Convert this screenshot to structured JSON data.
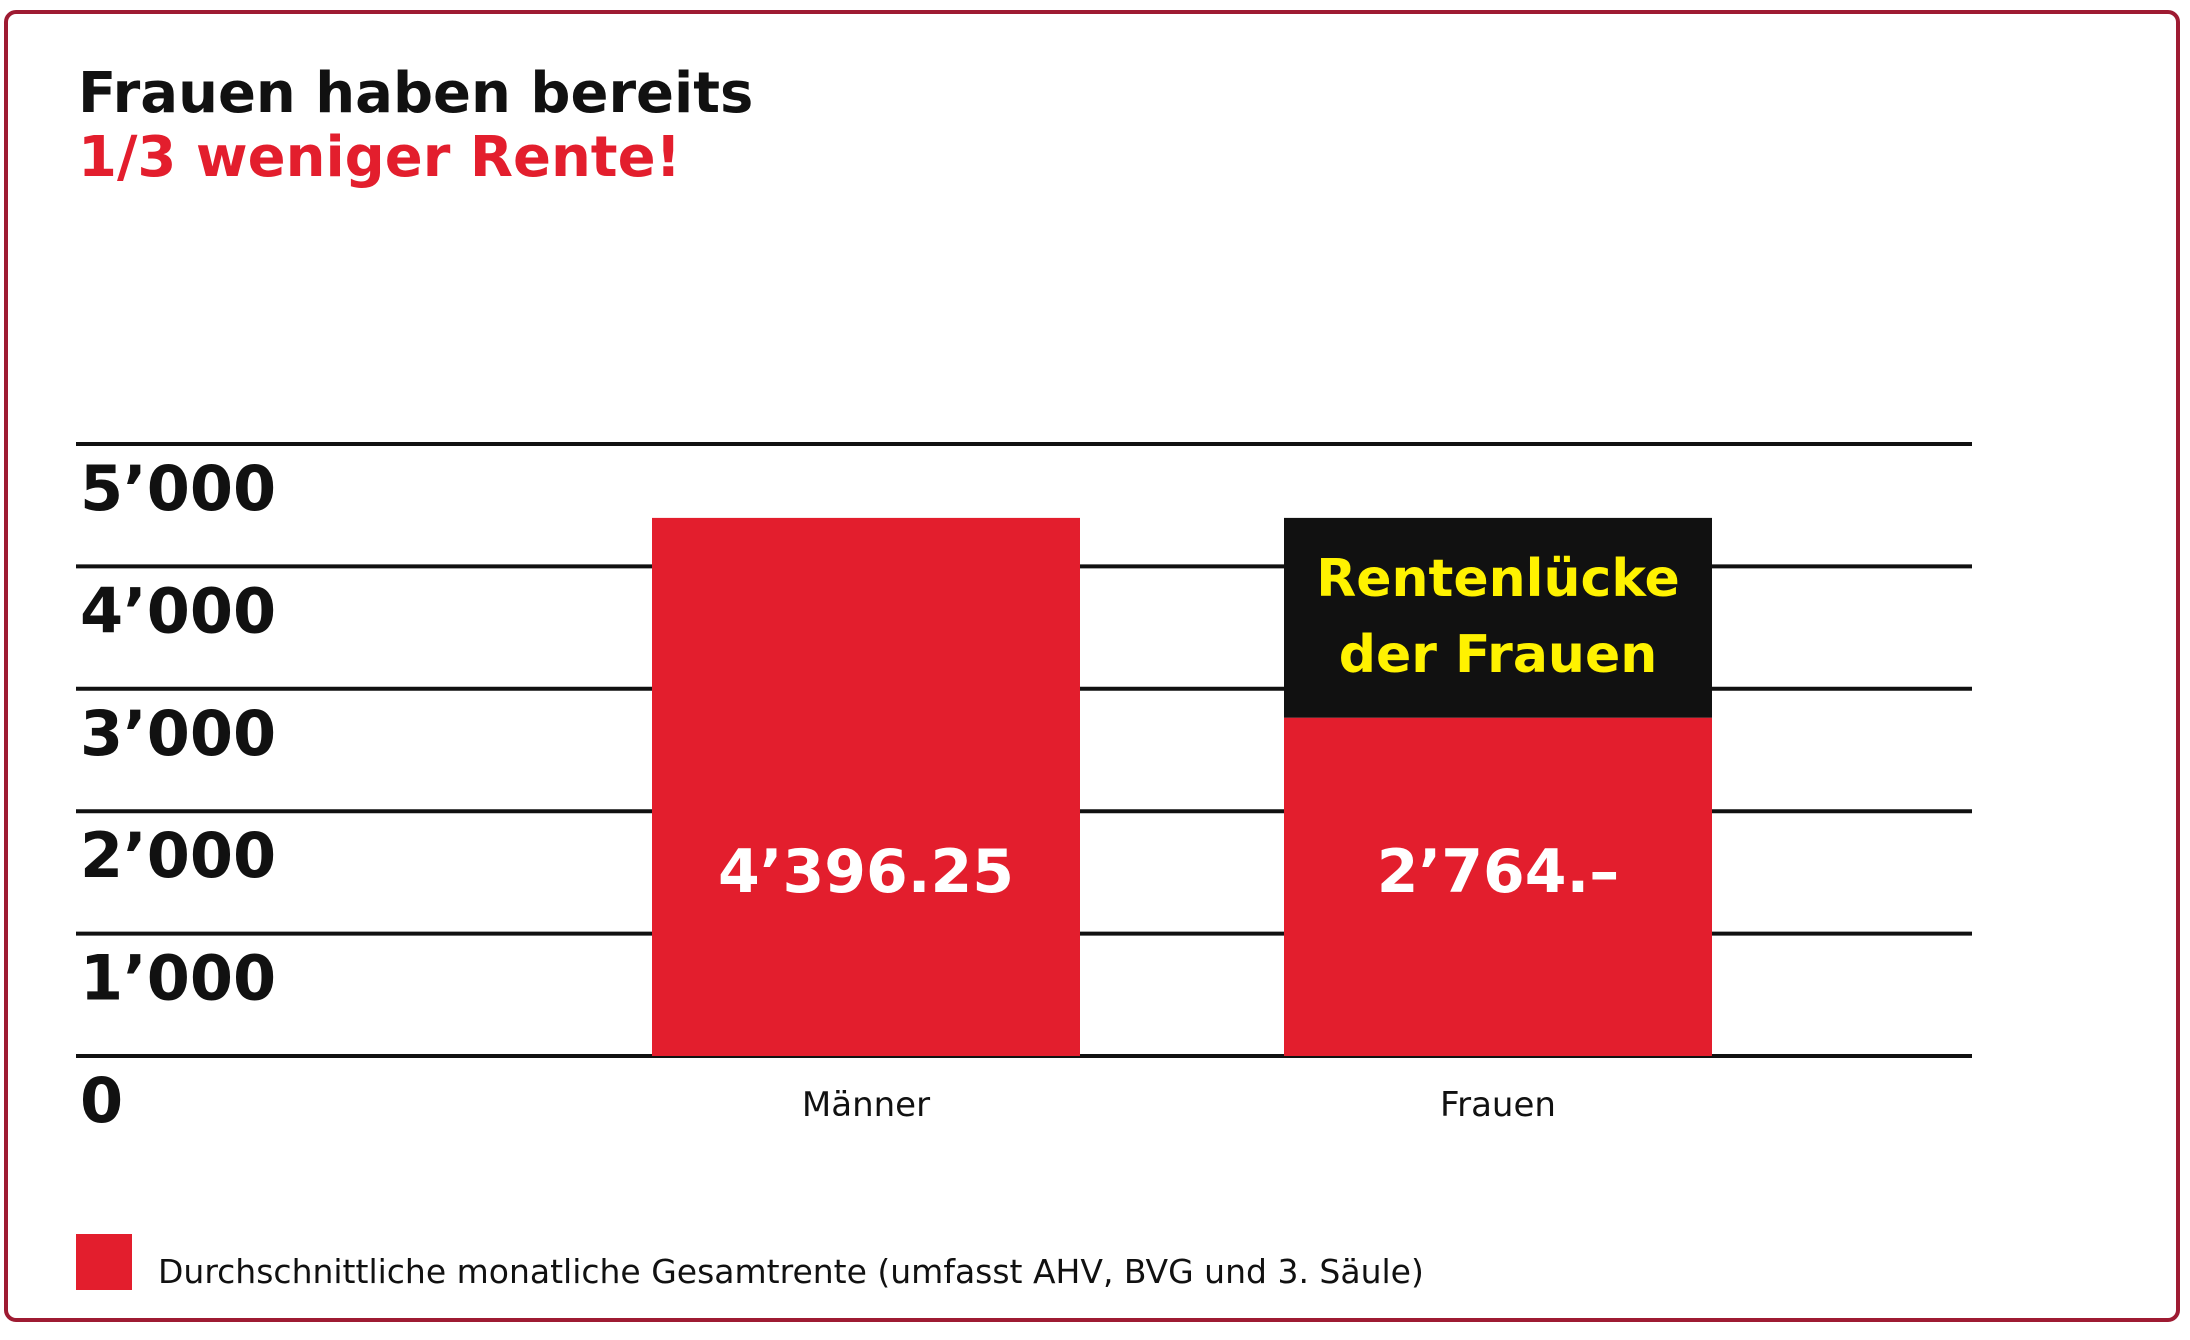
{
  "chart_data": {
    "type": "bar",
    "title": "Frauen haben bereits",
    "subtitle": "1/3 weniger Rente!",
    "categories": [
      "Männer",
      "Frauen"
    ],
    "values": [
      4396.25,
      2764
    ],
    "value_labels": [
      "4’396.25",
      "2’764.–"
    ],
    "gap": {
      "category": "Frauen",
      "from": 2764,
      "to": 4396.25,
      "label_lines": [
        "Rentenlücke",
        "der Frauen"
      ]
    },
    "yticks": [
      0,
      1000,
      2000,
      3000,
      4000,
      5000
    ],
    "ytick_labels": [
      "0",
      "1’000",
      "2’000",
      "3’000",
      "4’000",
      "5’000"
    ],
    "ylim": [
      0,
      5000
    ],
    "grid": true,
    "legend": {
      "position": "bottom-left",
      "entries": [
        {
          "label": "Durchschnittliche monatliche Gesamtrente (umfasst AHV, BVG und 3. Säule)",
          "color": "#e31e2d"
        }
      ]
    },
    "colors": {
      "bar": "#e31e2d",
      "gap": "#111111",
      "gap_text": "#fff200",
      "value_text": "#ffffff",
      "frame": "#9e1b32"
    }
  }
}
